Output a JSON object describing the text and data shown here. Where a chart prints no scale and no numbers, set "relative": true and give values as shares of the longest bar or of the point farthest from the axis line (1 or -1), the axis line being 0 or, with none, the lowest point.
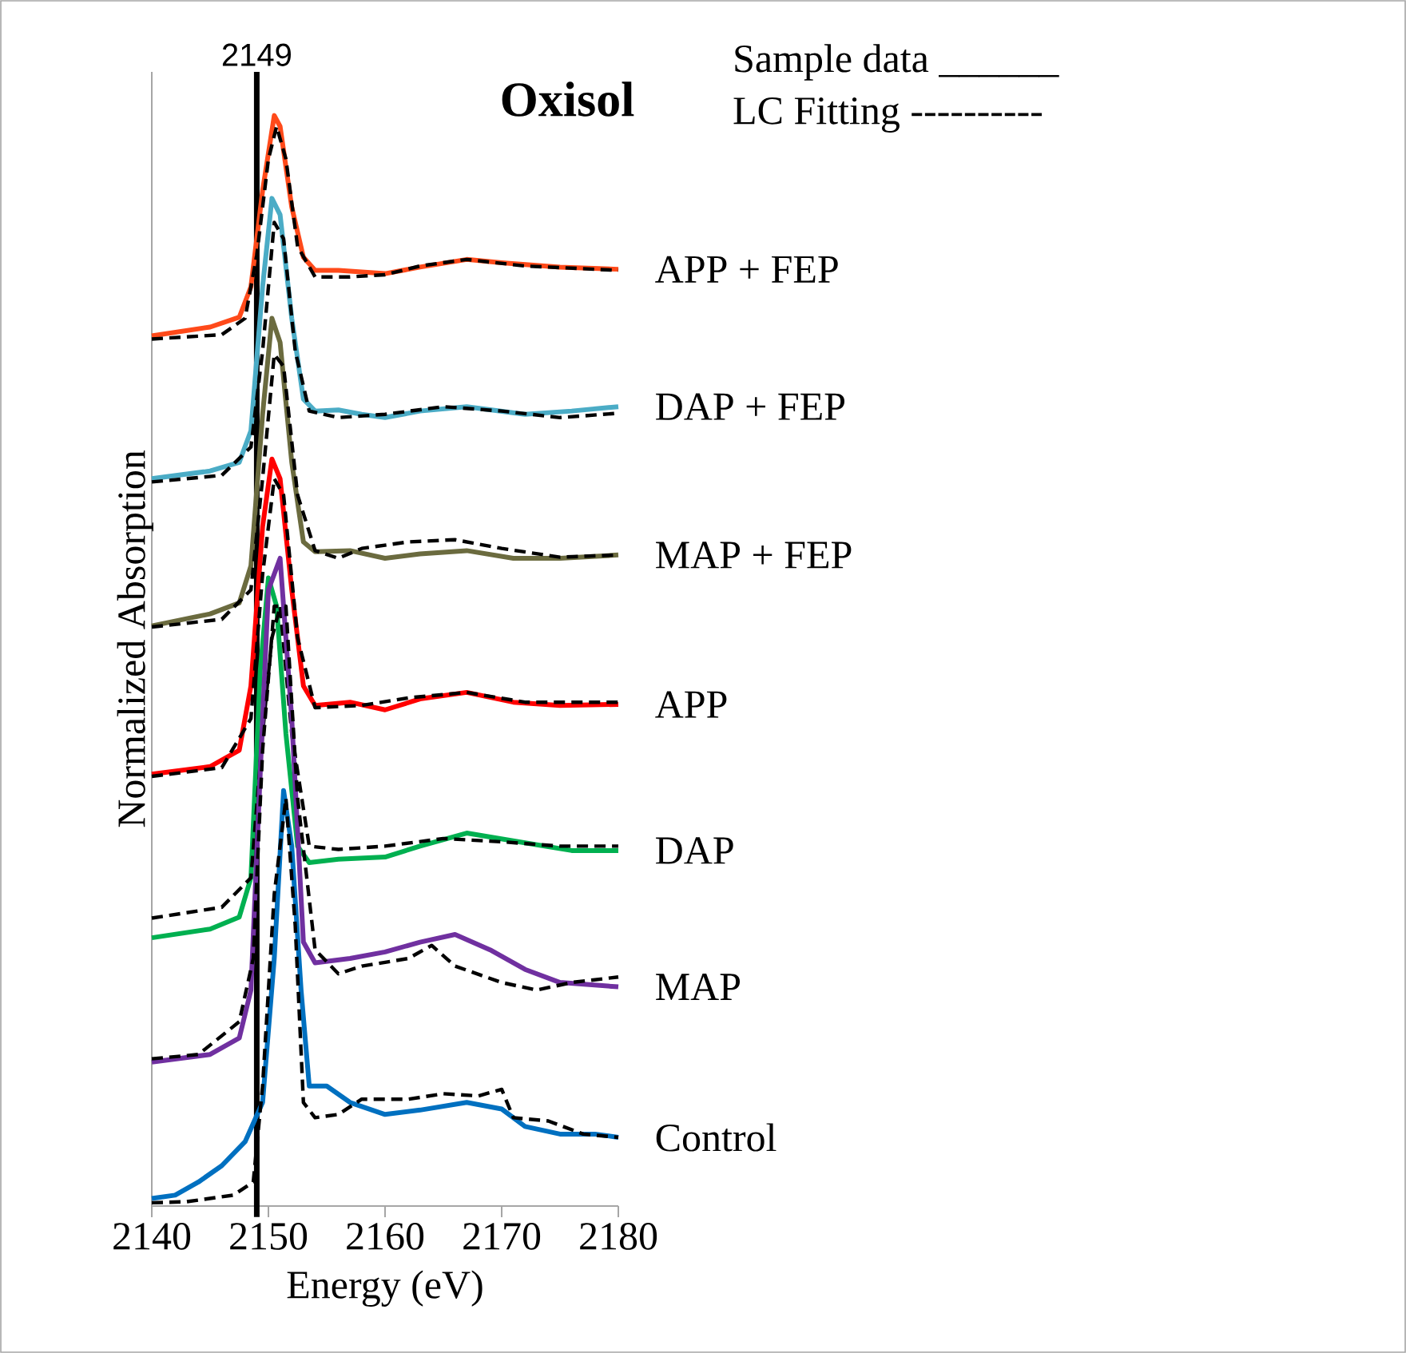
{
  "chart_data": {
    "type": "line",
    "title": "Oxisol",
    "xlabel": "Energy (eV)",
    "ylabel": "Normalized Absorption",
    "relative": true,
    "xlim": [
      2140,
      2180
    ],
    "xticks": [
      2140,
      2150,
      2160,
      2170,
      2180
    ],
    "grid": false,
    "annotations": [
      "Sample data ______",
      "LC Fitting    ----------"
    ],
    "ref_lines": [
      {
        "axis": "x",
        "value": 2149,
        "label": "2149",
        "color": "#000000"
      }
    ],
    "series": [
      {
        "name": "APP + FEP",
        "color": "#ff4a1a",
        "x": [
          2140,
          2145,
          2147.5,
          2148.5,
          2149.5,
          2150.5,
          2151,
          2152,
          2153,
          2154,
          2156,
          2160,
          2163,
          2167,
          2170,
          2175,
          2180
        ],
        "values": [
          0.798,
          0.806,
          0.815,
          0.843,
          0.931,
          1.0,
          0.99,
          0.916,
          0.87,
          0.858,
          0.858,
          0.855,
          0.861,
          0.868,
          0.865,
          0.861,
          0.859
        ]
      },
      {
        "color": "#000000",
        "line_style": "dashed",
        "x": [
          2140,
          2146,
          2148,
          2149,
          2150,
          2150.7,
          2151.5,
          2152.5,
          2154,
          2157,
          2160,
          2163,
          2167,
          2172,
          2180
        ],
        "values": [
          0.795,
          0.799,
          0.814,
          0.872,
          0.96,
          0.99,
          0.96,
          0.88,
          0.852,
          0.852,
          0.854,
          0.862,
          0.868,
          0.862,
          0.858
        ]
      },
      {
        "name": "DAP + FEP",
        "color": "#4bacc6",
        "x": [
          2140,
          2145,
          2147.5,
          2148.5,
          2149.5,
          2150.3,
          2151,
          2152,
          2153,
          2154,
          2156,
          2158,
          2160,
          2163,
          2167,
          2172,
          2176,
          2180
        ],
        "values": [
          0.667,
          0.674,
          0.682,
          0.711,
          0.843,
          0.924,
          0.909,
          0.814,
          0.74,
          0.729,
          0.73,
          0.726,
          0.723,
          0.729,
          0.733,
          0.726,
          0.729,
          0.733
        ]
      },
      {
        "color": "#000000",
        "line_style": "dashed",
        "x": [
          2140,
          2146,
          2148.5,
          2149.5,
          2150.5,
          2151.3,
          2152.3,
          2153.5,
          2156,
          2160,
          2165,
          2170,
          2175,
          2180
        ],
        "values": [
          0.664,
          0.67,
          0.696,
          0.784,
          0.902,
          0.887,
          0.784,
          0.729,
          0.723,
          0.726,
          0.733,
          0.729,
          0.723,
          0.727
        ]
      },
      {
        "name": "MAP + FEP",
        "color": "#6b6b3f",
        "x": [
          2140,
          2145,
          2147.5,
          2148.5,
          2149.5,
          2150.3,
          2151,
          2152,
          2153,
          2154,
          2157,
          2160,
          2163,
          2167,
          2171,
          2175,
          2180
        ],
        "values": [
          0.532,
          0.543,
          0.553,
          0.587,
          0.726,
          0.814,
          0.792,
          0.682,
          0.609,
          0.6,
          0.601,
          0.594,
          0.598,
          0.601,
          0.594,
          0.594,
          0.597
        ]
      },
      {
        "color": "#000000",
        "line_style": "dashed",
        "x": [
          2140,
          2146,
          2148.5,
          2149.5,
          2150.5,
          2151.3,
          2152.5,
          2154,
          2156,
          2158,
          2162,
          2166,
          2170,
          2175,
          2180
        ],
        "values": [
          0.531,
          0.538,
          0.565,
          0.667,
          0.781,
          0.77,
          0.652,
          0.601,
          0.594,
          0.603,
          0.609,
          0.611,
          0.603,
          0.595,
          0.597
        ]
      },
      {
        "name": "APP",
        "color": "#ff0000",
        "x": [
          2140,
          2145,
          2147.5,
          2148.5,
          2149.5,
          2150.3,
          2151,
          2152,
          2153,
          2154,
          2157,
          2160,
          2163,
          2167,
          2171,
          2175,
          2180
        ],
        "values": [
          0.396,
          0.403,
          0.418,
          0.477,
          0.623,
          0.685,
          0.667,
          0.565,
          0.477,
          0.459,
          0.462,
          0.455,
          0.465,
          0.471,
          0.462,
          0.459,
          0.46
        ]
      },
      {
        "color": "#000000",
        "line_style": "dashed",
        "x": [
          2140,
          2146,
          2148.5,
          2149.5,
          2150.5,
          2151.3,
          2152.5,
          2154,
          2158,
          2162,
          2167,
          2172,
          2180
        ],
        "values": [
          0.394,
          0.402,
          0.447,
          0.579,
          0.667,
          0.652,
          0.521,
          0.457,
          0.459,
          0.466,
          0.471,
          0.462,
          0.462
        ]
      },
      {
        "name": "DAP",
        "color": "#00b050",
        "x": [
          2140,
          2145,
          2147.5,
          2148.5,
          2149.3,
          2150,
          2150.7,
          2151.5,
          2152.5,
          2153.5,
          2156,
          2160,
          2163,
          2167,
          2172,
          2176,
          2180
        ],
        "values": [
          0.246,
          0.254,
          0.265,
          0.301,
          0.491,
          0.576,
          0.55,
          0.433,
          0.33,
          0.315,
          0.318,
          0.32,
          0.33,
          0.342,
          0.333,
          0.326,
          0.326
        ]
      },
      {
        "color": "#000000",
        "line_style": "dashed",
        "x": [
          2140,
          2146,
          2148.5,
          2149.5,
          2150.3,
          2151,
          2152,
          2153.5,
          2156,
          2160,
          2165,
          2170,
          2175,
          2180
        ],
        "values": [
          0.264,
          0.274,
          0.301,
          0.433,
          0.521,
          0.55,
          0.433,
          0.33,
          0.327,
          0.33,
          0.337,
          0.334,
          0.33,
          0.33
        ]
      },
      {
        "name": "MAP",
        "color": "#7030a0",
        "x": [
          2140,
          2145,
          2147.5,
          2148.5,
          2149.5,
          2150,
          2151,
          2152,
          2153,
          2154,
          2157,
          2160,
          2163,
          2166,
          2169,
          2172,
          2175,
          2180
        ],
        "values": [
          0.132,
          0.139,
          0.154,
          0.198,
          0.447,
          0.565,
          0.594,
          0.447,
          0.242,
          0.223,
          0.227,
          0.233,
          0.242,
          0.249,
          0.235,
          0.217,
          0.205,
          0.201
        ]
      },
      {
        "color": "#000000",
        "line_style": "dashed",
        "x": [
          2140,
          2144,
          2147.5,
          2148.7,
          2149.5,
          2150.5,
          2151.5,
          2152.5,
          2154,
          2156,
          2158,
          2162,
          2164,
          2166,
          2170,
          2173,
          2176,
          2180
        ],
        "values": [
          0.135,
          0.139,
          0.169,
          0.227,
          0.418,
          0.55,
          0.55,
          0.374,
          0.235,
          0.213,
          0.22,
          0.227,
          0.239,
          0.22,
          0.205,
          0.198,
          0.205,
          0.21
        ]
      },
      {
        "name": "Control",
        "color": "#0070c0",
        "x": [
          2140,
          2142,
          2144,
          2146,
          2148,
          2149.5,
          2150.5,
          2151.3,
          2152,
          2152.8,
          2153.5,
          2155,
          2157,
          2160,
          2163,
          2167,
          2170,
          2172,
          2175,
          2178,
          2180
        ],
        "values": [
          0.007,
          0.01,
          0.022,
          0.037,
          0.059,
          0.095,
          0.227,
          0.381,
          0.33,
          0.198,
          0.11,
          0.11,
          0.095,
          0.084,
          0.088,
          0.095,
          0.089,
          0.073,
          0.066,
          0.066,
          0.063
        ]
      },
      {
        "color": "#000000",
        "line_style": "dashed",
        "x": [
          2140,
          2143,
          2147,
          2148.7,
          2149.5,
          2150.5,
          2151.5,
          2152.3,
          2153,
          2154,
          2156,
          2158,
          2162,
          2165,
          2168,
          2170,
          2171,
          2174,
          2177,
          2180
        ],
        "values": [
          0.003,
          0.004,
          0.01,
          0.022,
          0.11,
          0.286,
          0.374,
          0.257,
          0.095,
          0.081,
          0.084,
          0.098,
          0.098,
          0.103,
          0.101,
          0.107,
          0.081,
          0.078,
          0.066,
          0.063
        ]
      }
    ]
  }
}
